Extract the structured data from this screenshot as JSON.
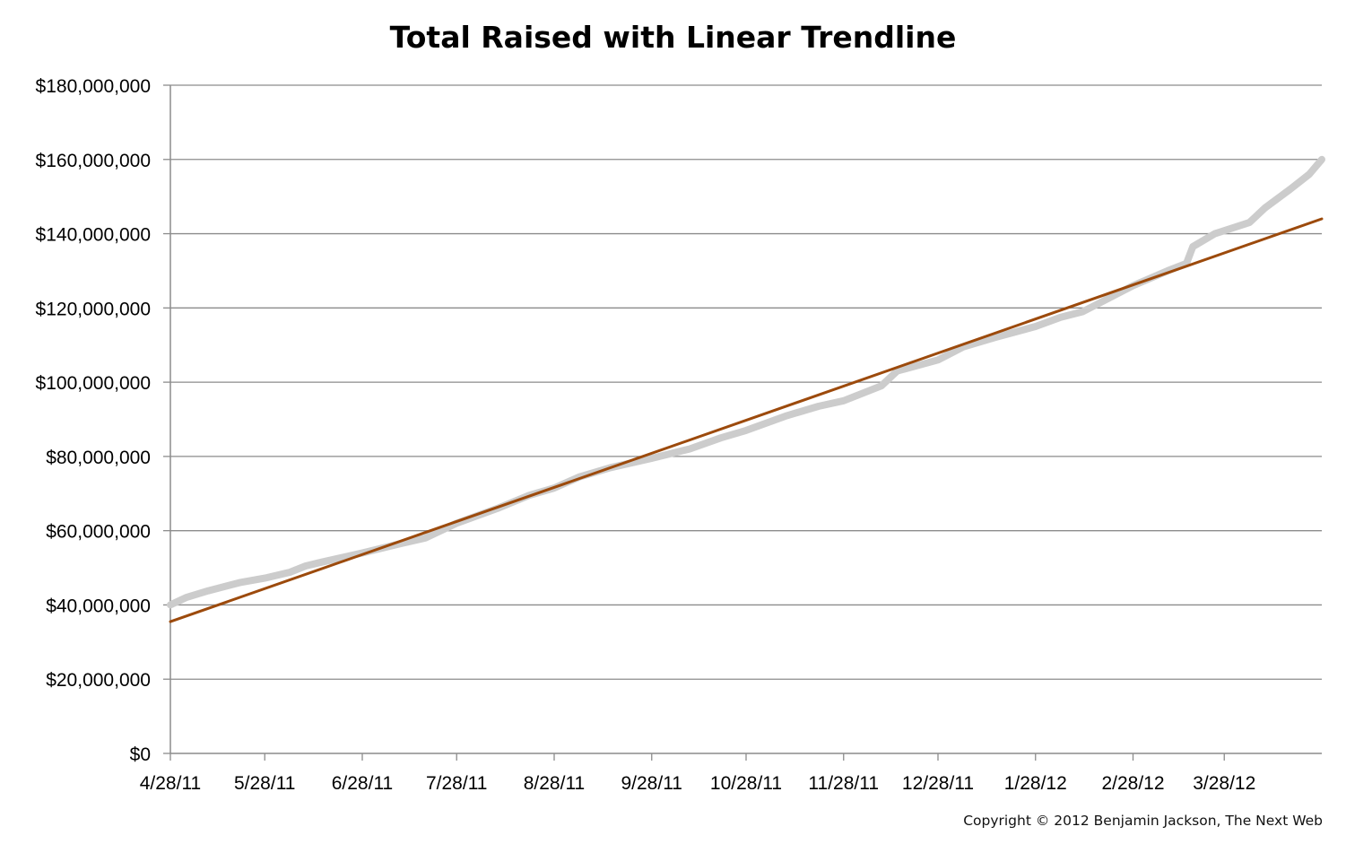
{
  "copyright": "Copyright © 2012 Benjamin Jackson, The Next Web",
  "colors": {
    "total_raised": "#cccccc",
    "trendline": "#9c4a0c",
    "grid": "#8c8c8c",
    "axis": "#8c8c8c"
  },
  "chart_data": {
    "type": "line",
    "title": "Total Raised with Linear Trendline",
    "xlabel": "",
    "ylabel": "",
    "ylim": [
      0,
      180000000
    ],
    "xlim": [
      "2011-04-28",
      "2012-04-28"
    ],
    "grid": true,
    "y_ticks": [
      0,
      20000000,
      40000000,
      60000000,
      80000000,
      100000000,
      120000000,
      140000000,
      160000000,
      180000000
    ],
    "y_tick_labels": [
      "$0",
      "$20,000,000",
      "$40,000,000",
      "$60,000,000",
      "$80,000,000",
      "$100,000,000",
      "$120,000,000",
      "$140,000,000",
      "$160,000,000",
      "$180,000,000"
    ],
    "x_ticks": [
      "2011-04-28",
      "2011-05-28",
      "2011-06-28",
      "2011-07-28",
      "2011-08-28",
      "2011-09-28",
      "2011-10-28",
      "2011-11-28",
      "2011-12-28",
      "2012-01-28",
      "2012-02-28",
      "2012-03-28"
    ],
    "x_tick_labels": [
      "4/28/11",
      "5/28/11",
      "6/28/11",
      "7/28/11",
      "8/28/11",
      "9/28/11",
      "10/28/11",
      "11/28/11",
      "12/28/11",
      "1/28/12",
      "2/28/12",
      "3/28/12"
    ],
    "series": [
      {
        "kind": "data",
        "color": "#cccccc",
        "points": [
          [
            "2011-04-28",
            40000000
          ],
          [
            "2011-05-03",
            42000000
          ],
          [
            "2011-05-10",
            43800000
          ],
          [
            "2011-05-20",
            46000000
          ],
          [
            "2011-05-28",
            47200000
          ],
          [
            "2011-06-05",
            48800000
          ],
          [
            "2011-06-10",
            50500000
          ],
          [
            "2011-06-15",
            51500000
          ],
          [
            "2011-06-28",
            54000000
          ],
          [
            "2011-07-10",
            56500000
          ],
          [
            "2011-07-18",
            58000000
          ],
          [
            "2011-07-28",
            62000000
          ],
          [
            "2011-08-10",
            66000000
          ],
          [
            "2011-08-20",
            69500000
          ],
          [
            "2011-08-28",
            71500000
          ],
          [
            "2011-09-05",
            74500000
          ],
          [
            "2011-09-15",
            77000000
          ],
          [
            "2011-09-28",
            79500000
          ],
          [
            "2011-10-10",
            82000000
          ],
          [
            "2011-10-20",
            85000000
          ],
          [
            "2011-10-28",
            87000000
          ],
          [
            "2011-11-10",
            91000000
          ],
          [
            "2011-11-20",
            93500000
          ],
          [
            "2011-11-28",
            95000000
          ],
          [
            "2011-12-10",
            99000000
          ],
          [
            "2011-12-15",
            103000000
          ],
          [
            "2011-12-28",
            106000000
          ],
          [
            "2012-01-05",
            109500000
          ],
          [
            "2012-01-15",
            112000000
          ],
          [
            "2012-01-28",
            115000000
          ],
          [
            "2012-02-05",
            117500000
          ],
          [
            "2012-02-12",
            119000000
          ],
          [
            "2012-02-28",
            126000000
          ],
          [
            "2012-03-10",
            130000000
          ],
          [
            "2012-03-16",
            132000000
          ],
          [
            "2012-03-18",
            136500000
          ],
          [
            "2012-03-25",
            140000000
          ],
          [
            "2012-04-05",
            143000000
          ],
          [
            "2012-04-10",
            147000000
          ],
          [
            "2012-04-18",
            152000000
          ],
          [
            "2012-04-24",
            156000000
          ],
          [
            "2012-04-28",
            160000000
          ]
        ]
      },
      {
        "kind": "trendline",
        "color": "#9c4a0c",
        "points": [
          [
            "2011-04-28",
            35500000
          ],
          [
            "2012-04-28",
            144000000
          ]
        ]
      }
    ]
  }
}
